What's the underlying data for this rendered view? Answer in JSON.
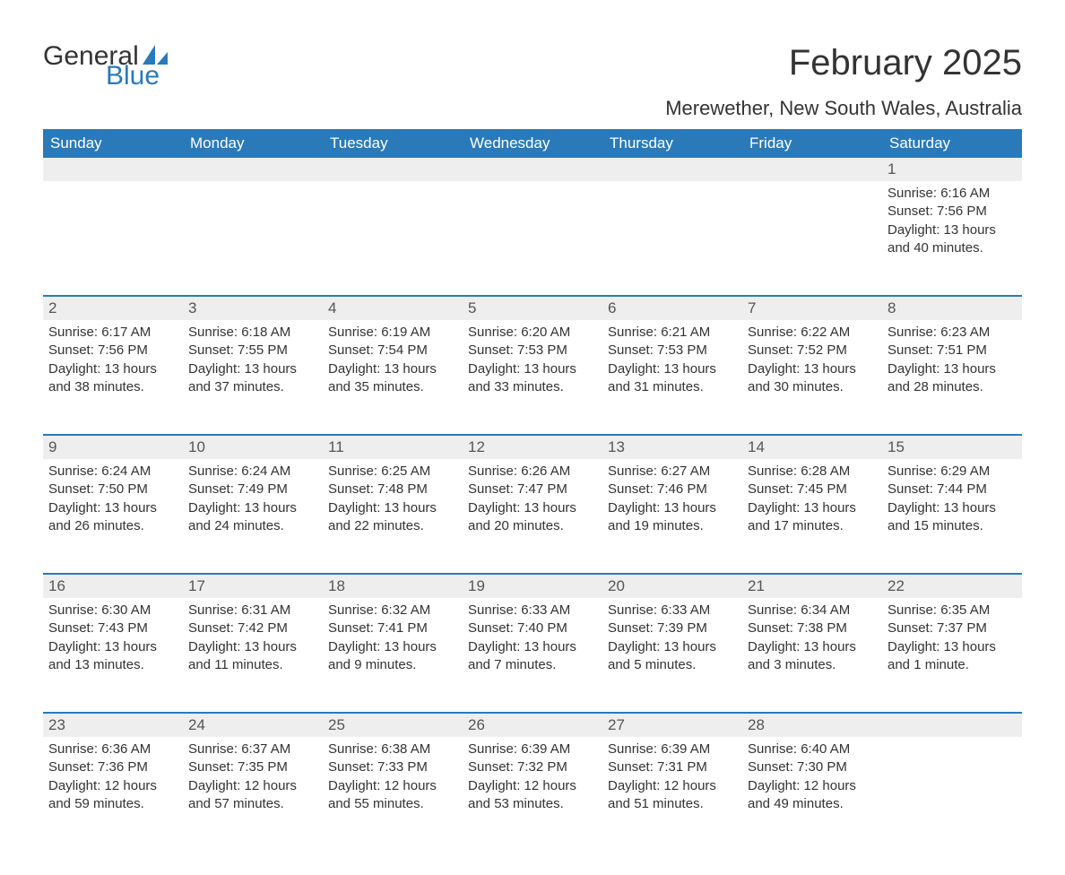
{
  "logo": {
    "word1": "General",
    "word2": "Blue",
    "brand_color": "#2a7ab9"
  },
  "title": "February 2025",
  "location": "Merewether, New South Wales, Australia",
  "colors": {
    "header_bg": "#2a7ab9",
    "header_fg": "#ffffff",
    "daynum_bg": "#eeeeee",
    "daynum_fg": "#555555",
    "body_fg": "#333333",
    "rule": "#2a7ab9",
    "page_bg": "#ffffff"
  },
  "typography": {
    "title_fontsize": 40,
    "location_fontsize": 22,
    "header_fontsize": 17,
    "daynum_fontsize": 17,
    "detail_fontsize": 15
  },
  "calendar": {
    "type": "table",
    "columns": [
      "Sunday",
      "Monday",
      "Tuesday",
      "Wednesday",
      "Thursday",
      "Friday",
      "Saturday"
    ],
    "weeks": [
      [
        null,
        null,
        null,
        null,
        null,
        null,
        {
          "n": "1",
          "sr": "Sunrise: 6:16 AM",
          "ss": "Sunset: 7:56 PM",
          "dl": "Daylight: 13 hours and 40 minutes."
        }
      ],
      [
        {
          "n": "2",
          "sr": "Sunrise: 6:17 AM",
          "ss": "Sunset: 7:56 PM",
          "dl": "Daylight: 13 hours and 38 minutes."
        },
        {
          "n": "3",
          "sr": "Sunrise: 6:18 AM",
          "ss": "Sunset: 7:55 PM",
          "dl": "Daylight: 13 hours and 37 minutes."
        },
        {
          "n": "4",
          "sr": "Sunrise: 6:19 AM",
          "ss": "Sunset: 7:54 PM",
          "dl": "Daylight: 13 hours and 35 minutes."
        },
        {
          "n": "5",
          "sr": "Sunrise: 6:20 AM",
          "ss": "Sunset: 7:53 PM",
          "dl": "Daylight: 13 hours and 33 minutes."
        },
        {
          "n": "6",
          "sr": "Sunrise: 6:21 AM",
          "ss": "Sunset: 7:53 PM",
          "dl": "Daylight: 13 hours and 31 minutes."
        },
        {
          "n": "7",
          "sr": "Sunrise: 6:22 AM",
          "ss": "Sunset: 7:52 PM",
          "dl": "Daylight: 13 hours and 30 minutes."
        },
        {
          "n": "8",
          "sr": "Sunrise: 6:23 AM",
          "ss": "Sunset: 7:51 PM",
          "dl": "Daylight: 13 hours and 28 minutes."
        }
      ],
      [
        {
          "n": "9",
          "sr": "Sunrise: 6:24 AM",
          "ss": "Sunset: 7:50 PM",
          "dl": "Daylight: 13 hours and 26 minutes."
        },
        {
          "n": "10",
          "sr": "Sunrise: 6:24 AM",
          "ss": "Sunset: 7:49 PM",
          "dl": "Daylight: 13 hours and 24 minutes."
        },
        {
          "n": "11",
          "sr": "Sunrise: 6:25 AM",
          "ss": "Sunset: 7:48 PM",
          "dl": "Daylight: 13 hours and 22 minutes."
        },
        {
          "n": "12",
          "sr": "Sunrise: 6:26 AM",
          "ss": "Sunset: 7:47 PM",
          "dl": "Daylight: 13 hours and 20 minutes."
        },
        {
          "n": "13",
          "sr": "Sunrise: 6:27 AM",
          "ss": "Sunset: 7:46 PM",
          "dl": "Daylight: 13 hours and 19 minutes."
        },
        {
          "n": "14",
          "sr": "Sunrise: 6:28 AM",
          "ss": "Sunset: 7:45 PM",
          "dl": "Daylight: 13 hours and 17 minutes."
        },
        {
          "n": "15",
          "sr": "Sunrise: 6:29 AM",
          "ss": "Sunset: 7:44 PM",
          "dl": "Daylight: 13 hours and 15 minutes."
        }
      ],
      [
        {
          "n": "16",
          "sr": "Sunrise: 6:30 AM",
          "ss": "Sunset: 7:43 PM",
          "dl": "Daylight: 13 hours and 13 minutes."
        },
        {
          "n": "17",
          "sr": "Sunrise: 6:31 AM",
          "ss": "Sunset: 7:42 PM",
          "dl": "Daylight: 13 hours and 11 minutes."
        },
        {
          "n": "18",
          "sr": "Sunrise: 6:32 AM",
          "ss": "Sunset: 7:41 PM",
          "dl": "Daylight: 13 hours and 9 minutes."
        },
        {
          "n": "19",
          "sr": "Sunrise: 6:33 AM",
          "ss": "Sunset: 7:40 PM",
          "dl": "Daylight: 13 hours and 7 minutes."
        },
        {
          "n": "20",
          "sr": "Sunrise: 6:33 AM",
          "ss": "Sunset: 7:39 PM",
          "dl": "Daylight: 13 hours and 5 minutes."
        },
        {
          "n": "21",
          "sr": "Sunrise: 6:34 AM",
          "ss": "Sunset: 7:38 PM",
          "dl": "Daylight: 13 hours and 3 minutes."
        },
        {
          "n": "22",
          "sr": "Sunrise: 6:35 AM",
          "ss": "Sunset: 7:37 PM",
          "dl": "Daylight: 13 hours and 1 minute."
        }
      ],
      [
        {
          "n": "23",
          "sr": "Sunrise: 6:36 AM",
          "ss": "Sunset: 7:36 PM",
          "dl": "Daylight: 12 hours and 59 minutes."
        },
        {
          "n": "24",
          "sr": "Sunrise: 6:37 AM",
          "ss": "Sunset: 7:35 PM",
          "dl": "Daylight: 12 hours and 57 minutes."
        },
        {
          "n": "25",
          "sr": "Sunrise: 6:38 AM",
          "ss": "Sunset: 7:33 PM",
          "dl": "Daylight: 12 hours and 55 minutes."
        },
        {
          "n": "26",
          "sr": "Sunrise: 6:39 AM",
          "ss": "Sunset: 7:32 PM",
          "dl": "Daylight: 12 hours and 53 minutes."
        },
        {
          "n": "27",
          "sr": "Sunrise: 6:39 AM",
          "ss": "Sunset: 7:31 PM",
          "dl": "Daylight: 12 hours and 51 minutes."
        },
        {
          "n": "28",
          "sr": "Sunrise: 6:40 AM",
          "ss": "Sunset: 7:30 PM",
          "dl": "Daylight: 12 hours and 49 minutes."
        },
        null
      ]
    ]
  }
}
